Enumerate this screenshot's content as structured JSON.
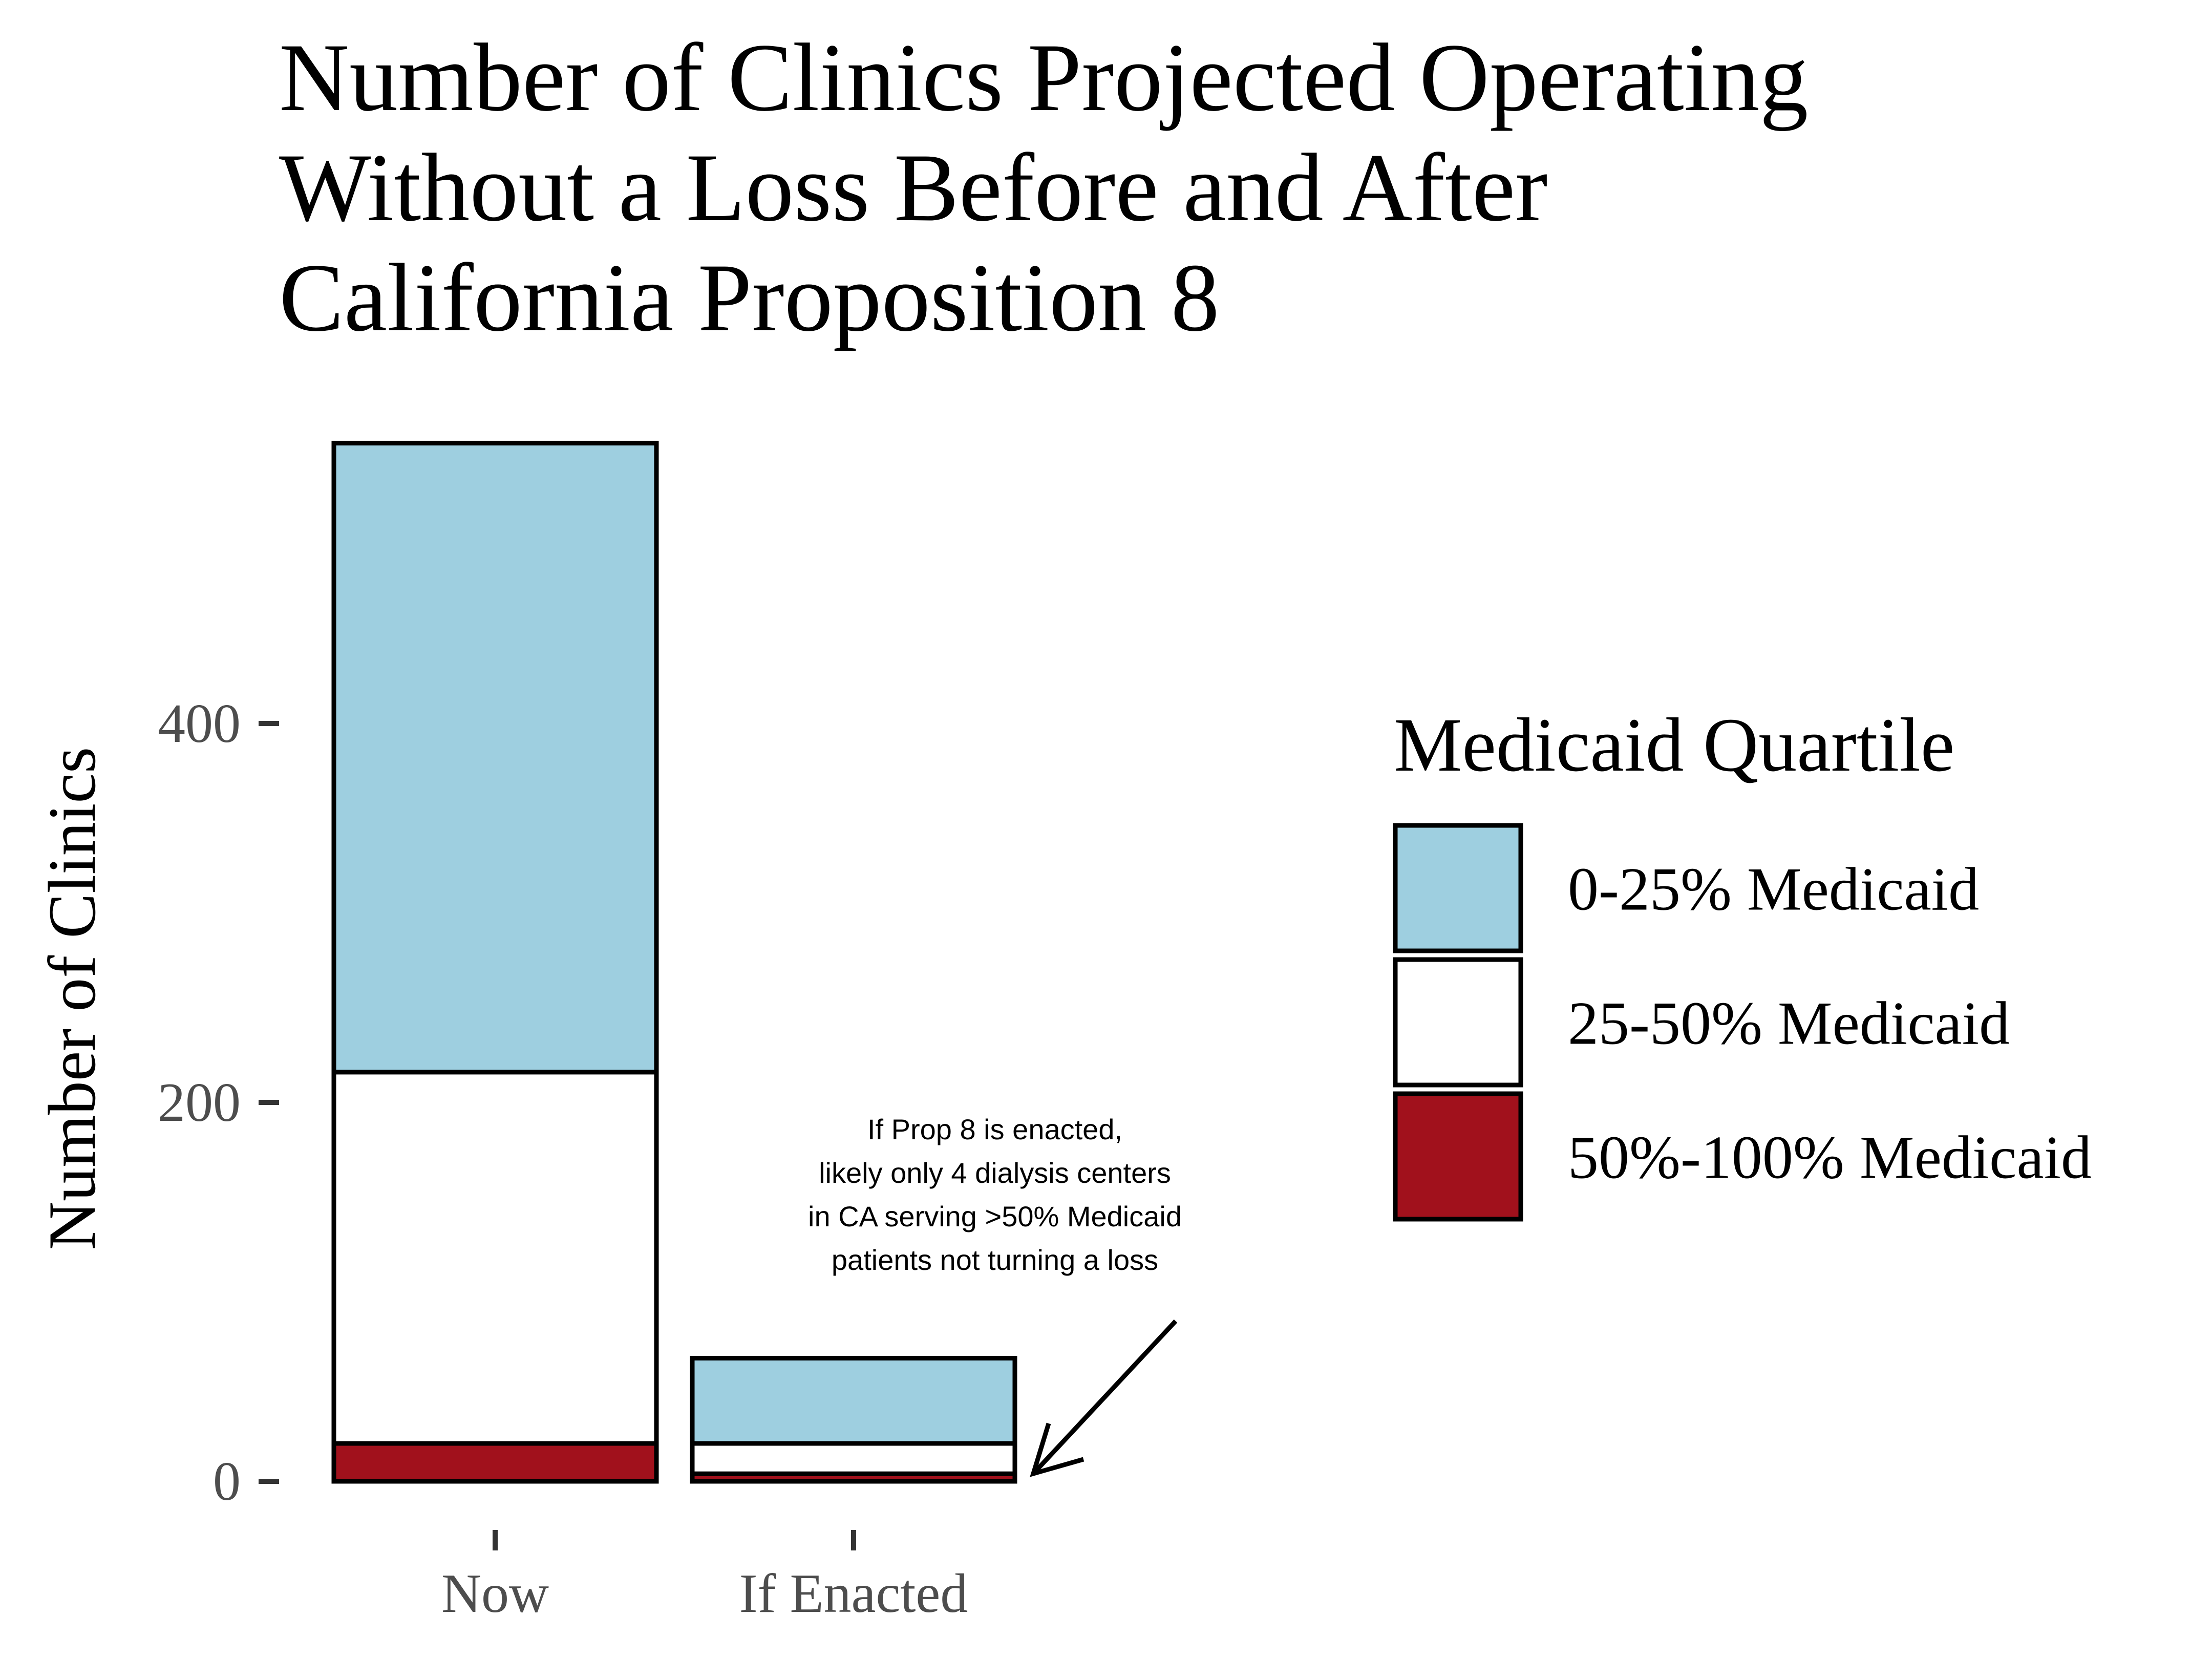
{
  "chart_data": {
    "type": "bar",
    "stacked": true,
    "title": "Number of Clinics Projected Operating Without a Loss Before and After California Proposition 8",
    "title_lines": [
      "Number of Clinics Projected Operating",
      "Without a Loss Before and After",
      "California Proposition 8"
    ],
    "xlabel": "",
    "ylabel": "Number of Clinics",
    "categories": [
      "Now",
      "If Enacted"
    ],
    "yticks": [
      0,
      200,
      400
    ],
    "ytick_labels": [
      "0",
      "200",
      "400"
    ],
    "ylim": [
      0,
      549
    ],
    "series": [
      {
        "name": "50%-100% Medicaid",
        "values": [
          20,
          4
        ],
        "color": "#a1111c"
      },
      {
        "name": "25-50% Medicaid",
        "values": [
          196,
          16
        ],
        "color": "#ffffff"
      },
      {
        "name": "0-25% Medicaid",
        "values": [
          332,
          45
        ],
        "color": "#9ecfe0"
      }
    ],
    "legend": {
      "title": "Medicaid Quartile",
      "placement": "right",
      "entries": [
        "0-25% Medicaid",
        "25-50% Medicaid",
        "50%-100% Medicaid"
      ]
    },
    "annotation": {
      "lines": [
        "If Prop 8 is enacted,",
        "likely only 4 dialysis centers",
        "in CA serving >50% Medicaid",
        "patients not turning a loss"
      ],
      "points_to": "If Enacted"
    },
    "grid": false,
    "bar_outline_color": "#000000"
  }
}
